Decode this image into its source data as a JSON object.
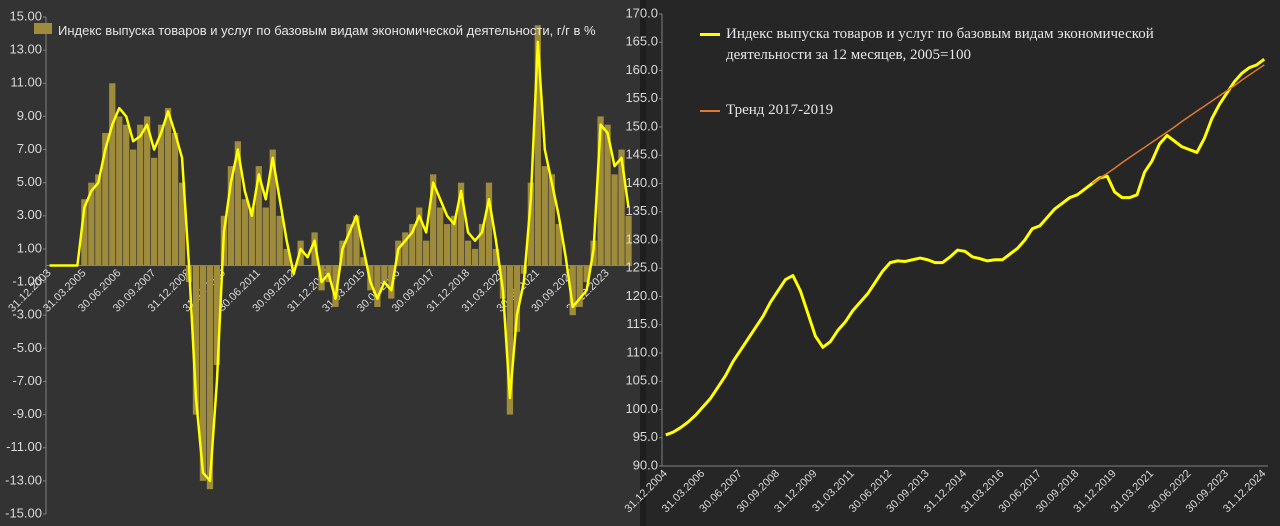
{
  "chart_data": [
    {
      "type": "bar",
      "categories": [
        "31.12.2003",
        null,
        null,
        null,
        null,
        "31.03.2005",
        null,
        null,
        null,
        null,
        "30.06.2006",
        null,
        null,
        null,
        null,
        "30.09.2007",
        null,
        null,
        null,
        null,
        "31.12.2008",
        null,
        null,
        null,
        null,
        "31.03.2010",
        null,
        null,
        null,
        null,
        "30.06.2011",
        null,
        null,
        null,
        null,
        "30.09.2012",
        null,
        null,
        null,
        null,
        "31.12.2013",
        null,
        null,
        null,
        null,
        "31.03.2015",
        null,
        null,
        null,
        null,
        "30.06.2016",
        null,
        null,
        null,
        null,
        "30.09.2017",
        null,
        null,
        null,
        null,
        "31.12.2018",
        null,
        null,
        null,
        null,
        "31.03.2020",
        null,
        null,
        null,
        null,
        "30.06.2021",
        null,
        null,
        null,
        null,
        "30.09.2022",
        null,
        null,
        null,
        null,
        "31.12.2023",
        null,
        null,
        null
      ],
      "series": [
        {
          "name": "Индекс выпуска товаров и услуг по базовым видам экономической деятельности, г/г в %",
          "type": "bar",
          "color": "#9e8b3c",
          "values": [
            0,
            0,
            0,
            0,
            0,
            4,
            5,
            5.5,
            8,
            11,
            9,
            8.5,
            7,
            8.5,
            9,
            6.5,
            8.5,
            9.5,
            8,
            5,
            -1,
            -9,
            -13,
            -13.5,
            -6,
            3,
            6,
            7.5,
            4,
            3.5,
            6,
            3.5,
            7,
            3,
            1,
            0,
            1.5,
            0,
            2,
            -1.5,
            -1,
            -2.5,
            1.5,
            2.5,
            3,
            0.5,
            -1.5,
            -2.5,
            -1,
            -2,
            1.5,
            2,
            2.5,
            3.5,
            1.5,
            5.5,
            3.5,
            2.5,
            3,
            5,
            1.5,
            1,
            2.5,
            5,
            1,
            -2,
            -9,
            -4,
            -0.5,
            5,
            14.5,
            6,
            5.5,
            2.5,
            0,
            -3,
            -2.5,
            -1,
            1.5,
            9,
            8.5,
            5.5,
            7,
            3
          ]
        },
        {
          "type": "line",
          "color": "#ffff00",
          "values": [
            0,
            0,
            0,
            0,
            0,
            3.5,
            4.5,
            5,
            7,
            8.5,
            9.5,
            9,
            7.5,
            7.8,
            8.5,
            7,
            8,
            9.3,
            8,
            6.5,
            0,
            -8,
            -12.5,
            -13,
            -7,
            2,
            5,
            7,
            4.5,
            3,
            5.5,
            4,
            6.5,
            4,
            1.5,
            -0.5,
            1,
            0.5,
            1.5,
            -1,
            -0.5,
            -2,
            1,
            2,
            3,
            1,
            -1,
            -2,
            -1,
            -1.5,
            1,
            1.5,
            2,
            3,
            2,
            5,
            4,
            3,
            2.5,
            4.5,
            2,
            1.5,
            2,
            4,
            1.5,
            -1.5,
            -8,
            -3,
            -1,
            4,
            13.5,
            7,
            5,
            3,
            0.5,
            -2.5,
            -2,
            -1.5,
            1,
            8.5,
            8,
            6,
            6.5,
            3.5
          ]
        }
      ],
      "ylim": [
        -15,
        15
      ],
      "yticks": [
        {
          "value": -15,
          "label": "-15.00"
        },
        {
          "value": -13,
          "label": "-13.00"
        },
        {
          "value": -11,
          "label": "-11.00"
        },
        {
          "value": -9,
          "label": "-9.00"
        },
        {
          "value": -7,
          "label": "-7.00"
        },
        {
          "value": -5,
          "label": "-5.00"
        },
        {
          "value": -3,
          "label": "-3.00"
        },
        {
          "value": -1,
          "label": "-1.00"
        },
        {
          "value": 1,
          "label": "1.00"
        },
        {
          "value": 3,
          "label": "3.00"
        },
        {
          "value": 5,
          "label": "5.00"
        },
        {
          "value": 7,
          "label": "7.00"
        },
        {
          "value": 9,
          "label": "9.00"
        },
        {
          "value": 11,
          "label": "11.00"
        },
        {
          "value": 13,
          "label": "13.00"
        },
        {
          "value": 15,
          "label": "15.00"
        }
      ],
      "grid": false
    },
    {
      "type": "line",
      "categories": [
        "31.12.2004",
        null,
        null,
        null,
        null,
        "31.03.2006",
        null,
        null,
        null,
        null,
        "30.06.2007",
        null,
        null,
        null,
        null,
        "30.09.2008",
        null,
        null,
        null,
        null,
        "31.12.2009",
        null,
        null,
        null,
        null,
        "31.03.2011",
        null,
        null,
        null,
        null,
        "30.06.2012",
        null,
        null,
        null,
        null,
        "30.09.2013",
        null,
        null,
        null,
        null,
        "31.12.2014",
        null,
        null,
        null,
        null,
        "31.03.2016",
        null,
        null,
        null,
        null,
        "30.06.2017",
        null,
        null,
        null,
        null,
        "30.09.2018",
        null,
        null,
        null,
        null,
        "31.12.2019",
        null,
        null,
        null,
        null,
        "31.03.2021",
        null,
        null,
        null,
        null,
        "30.06.2022",
        null,
        null,
        null,
        null,
        "30.09.2023",
        null,
        null,
        null,
        null,
        "31.12.2024"
      ],
      "series": [
        {
          "name": "Индекс выпуска товаров и услуг по базовым видам экономической деятельности за 12 месяцев, 2005=100",
          "color": "#ffff00",
          "width": 3,
          "values": [
            95.5,
            96,
            96.8,
            97.8,
            99,
            100.5,
            102,
            104,
            106,
            108.5,
            110.5,
            112.5,
            114.5,
            116.5,
            119,
            121,
            123,
            123.7,
            121,
            117,
            113,
            111,
            112,
            114,
            115.5,
            117.5,
            119,
            120.5,
            122.5,
            124.5,
            126,
            126.3,
            126.2,
            126.5,
            126.8,
            126.5,
            126,
            126,
            127,
            128.2,
            128,
            127,
            126.7,
            126.3,
            126.5,
            126.5,
            127.5,
            128.5,
            130,
            132,
            132.5,
            134,
            135.5,
            136.5,
            137.5,
            138,
            139,
            140,
            141,
            141.3,
            138.5,
            137.5,
            137.5,
            138,
            142,
            144,
            147,
            148.5,
            147.5,
            146.5,
            146,
            145.5,
            148,
            151.5,
            154,
            156,
            158,
            159.5,
            160.5,
            161,
            162
          ]
        },
        {
          "name": "Тренд 2017-2019",
          "color": "#e0782f",
          "width": 1.5,
          "values": [
            null,
            null,
            null,
            null,
            null,
            null,
            null,
            null,
            null,
            null,
            null,
            null,
            null,
            null,
            null,
            null,
            null,
            null,
            null,
            null,
            null,
            null,
            null,
            null,
            null,
            null,
            null,
            null,
            null,
            null,
            null,
            null,
            null,
            null,
            null,
            null,
            null,
            null,
            null,
            null,
            null,
            null,
            null,
            null,
            null,
            null,
            null,
            null,
            null,
            null,
            null,
            null,
            null,
            null,
            null,
            null,
            null,
            140,
            140.9,
            141.8,
            142.7,
            143.7,
            144.6,
            145.5,
            146.4,
            147.3,
            148.2,
            149.1,
            150,
            151,
            151.9,
            152.8,
            153.7,
            154.6,
            155.5,
            156.4,
            157.3,
            158.3,
            159.2,
            160.1,
            161
          ]
        }
      ],
      "ylim": [
        90,
        170
      ],
      "yticks": [
        {
          "value": 90,
          "label": "90.0"
        },
        {
          "value": 95,
          "label": "95.0"
        },
        {
          "value": 100,
          "label": "100.0"
        },
        {
          "value": 105,
          "label": "105.0"
        },
        {
          "value": 110,
          "label": "110.0"
        },
        {
          "value": 115,
          "label": "115.0"
        },
        {
          "value": 120,
          "label": "120.0"
        },
        {
          "value": 125,
          "label": "125.0"
        },
        {
          "value": 130,
          "label": "130.0"
        },
        {
          "value": 135,
          "label": "135.0"
        },
        {
          "value": 140,
          "label": "140.0"
        },
        {
          "value": 145,
          "label": "145.0"
        },
        {
          "value": 150,
          "label": "150.0"
        },
        {
          "value": 155,
          "label": "155.0"
        },
        {
          "value": 160,
          "label": "160.0"
        },
        {
          "value": 165,
          "label": "165.0"
        },
        {
          "value": 170,
          "label": "170.0"
        }
      ],
      "grid": false
    }
  ]
}
